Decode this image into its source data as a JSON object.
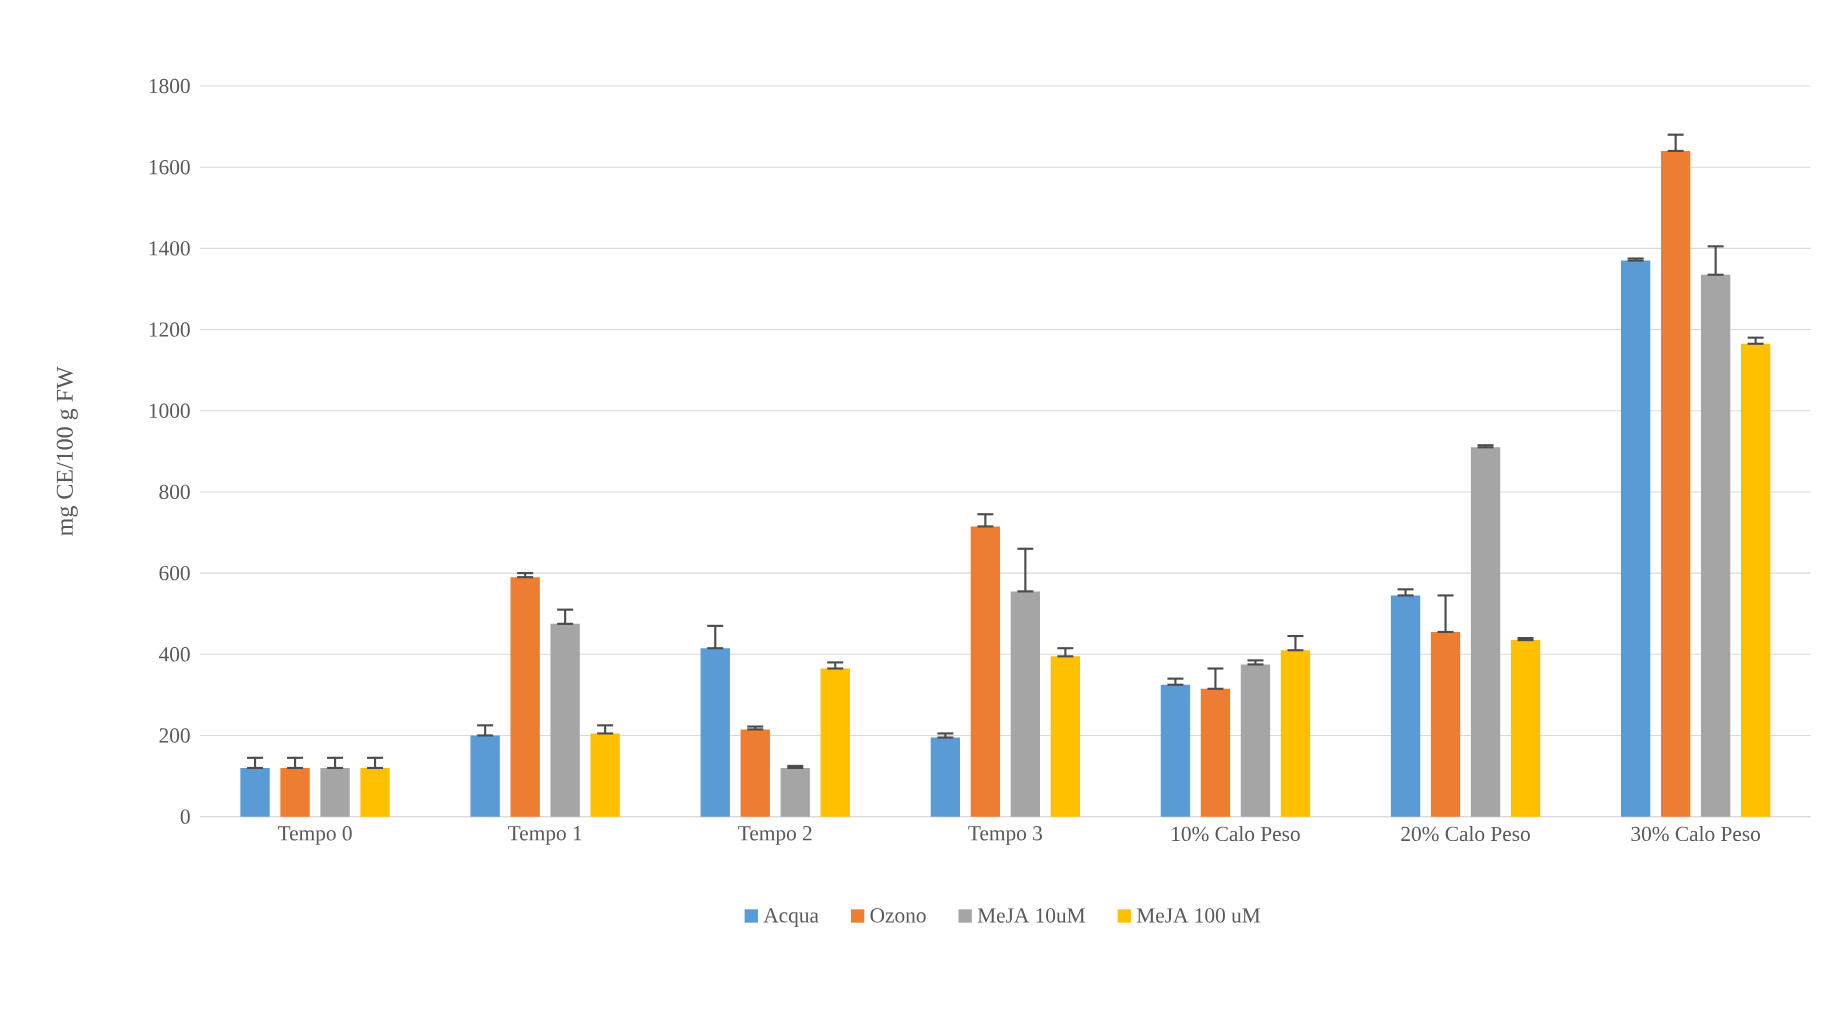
{
  "chart_data": {
    "type": "bar",
    "ylabel": "mg CE/100 g FW",
    "categories": [
      "Tempo 0",
      "Tempo 1",
      "Tempo 2",
      "Tempo 3",
      "10% Calo Peso",
      "20% Calo Peso",
      "30% Calo Peso"
    ],
    "series": [
      {
        "name": "Acqua",
        "color": "#5b9bd5",
        "values": [
          120,
          200,
          415,
          195,
          325,
          545,
          1370
        ],
        "errors": [
          [
            120,
            145
          ],
          [
            200,
            225
          ],
          [
            415,
            470
          ],
          [
            195,
            205
          ],
          [
            325,
            340
          ],
          [
            545,
            560
          ],
          [
            1370,
            1375
          ]
        ]
      },
      {
        "name": "Ozono",
        "color": "#ed7d31",
        "values": [
          120,
          590,
          215,
          715,
          315,
          455,
          1640
        ],
        "errors": [
          [
            120,
            145
          ],
          [
            590,
            600
          ],
          [
            215,
            222
          ],
          [
            715,
            745
          ],
          [
            315,
            365
          ],
          [
            455,
            545
          ],
          [
            1640,
            1680
          ]
        ]
      },
      {
        "name": "MeJA 10uM",
        "color": "#a5a5a5",
        "values": [
          120,
          475,
          120,
          555,
          375,
          910,
          1335
        ],
        "errors": [
          [
            120,
            145
          ],
          [
            475,
            510
          ],
          [
            120,
            125
          ],
          [
            555,
            660
          ],
          [
            375,
            385
          ],
          [
            910,
            915
          ],
          [
            1335,
            1405
          ]
        ]
      },
      {
        "name": "MeJA 100 uM",
        "color": "#ffc000",
        "values": [
          120,
          205,
          365,
          395,
          410,
          435,
          1165
        ],
        "errors": [
          [
            120,
            145
          ],
          [
            205,
            225
          ],
          [
            365,
            380
          ],
          [
            395,
            415
          ],
          [
            410,
            445
          ],
          [
            435,
            440
          ],
          [
            1165,
            1180
          ]
        ]
      }
    ],
    "ylim": [
      0,
      1800
    ],
    "yticks": [
      0,
      200,
      400,
      600,
      800,
      1000,
      1200,
      1400,
      1600,
      1800
    ],
    "grid": "y",
    "legend": "bottom"
  }
}
